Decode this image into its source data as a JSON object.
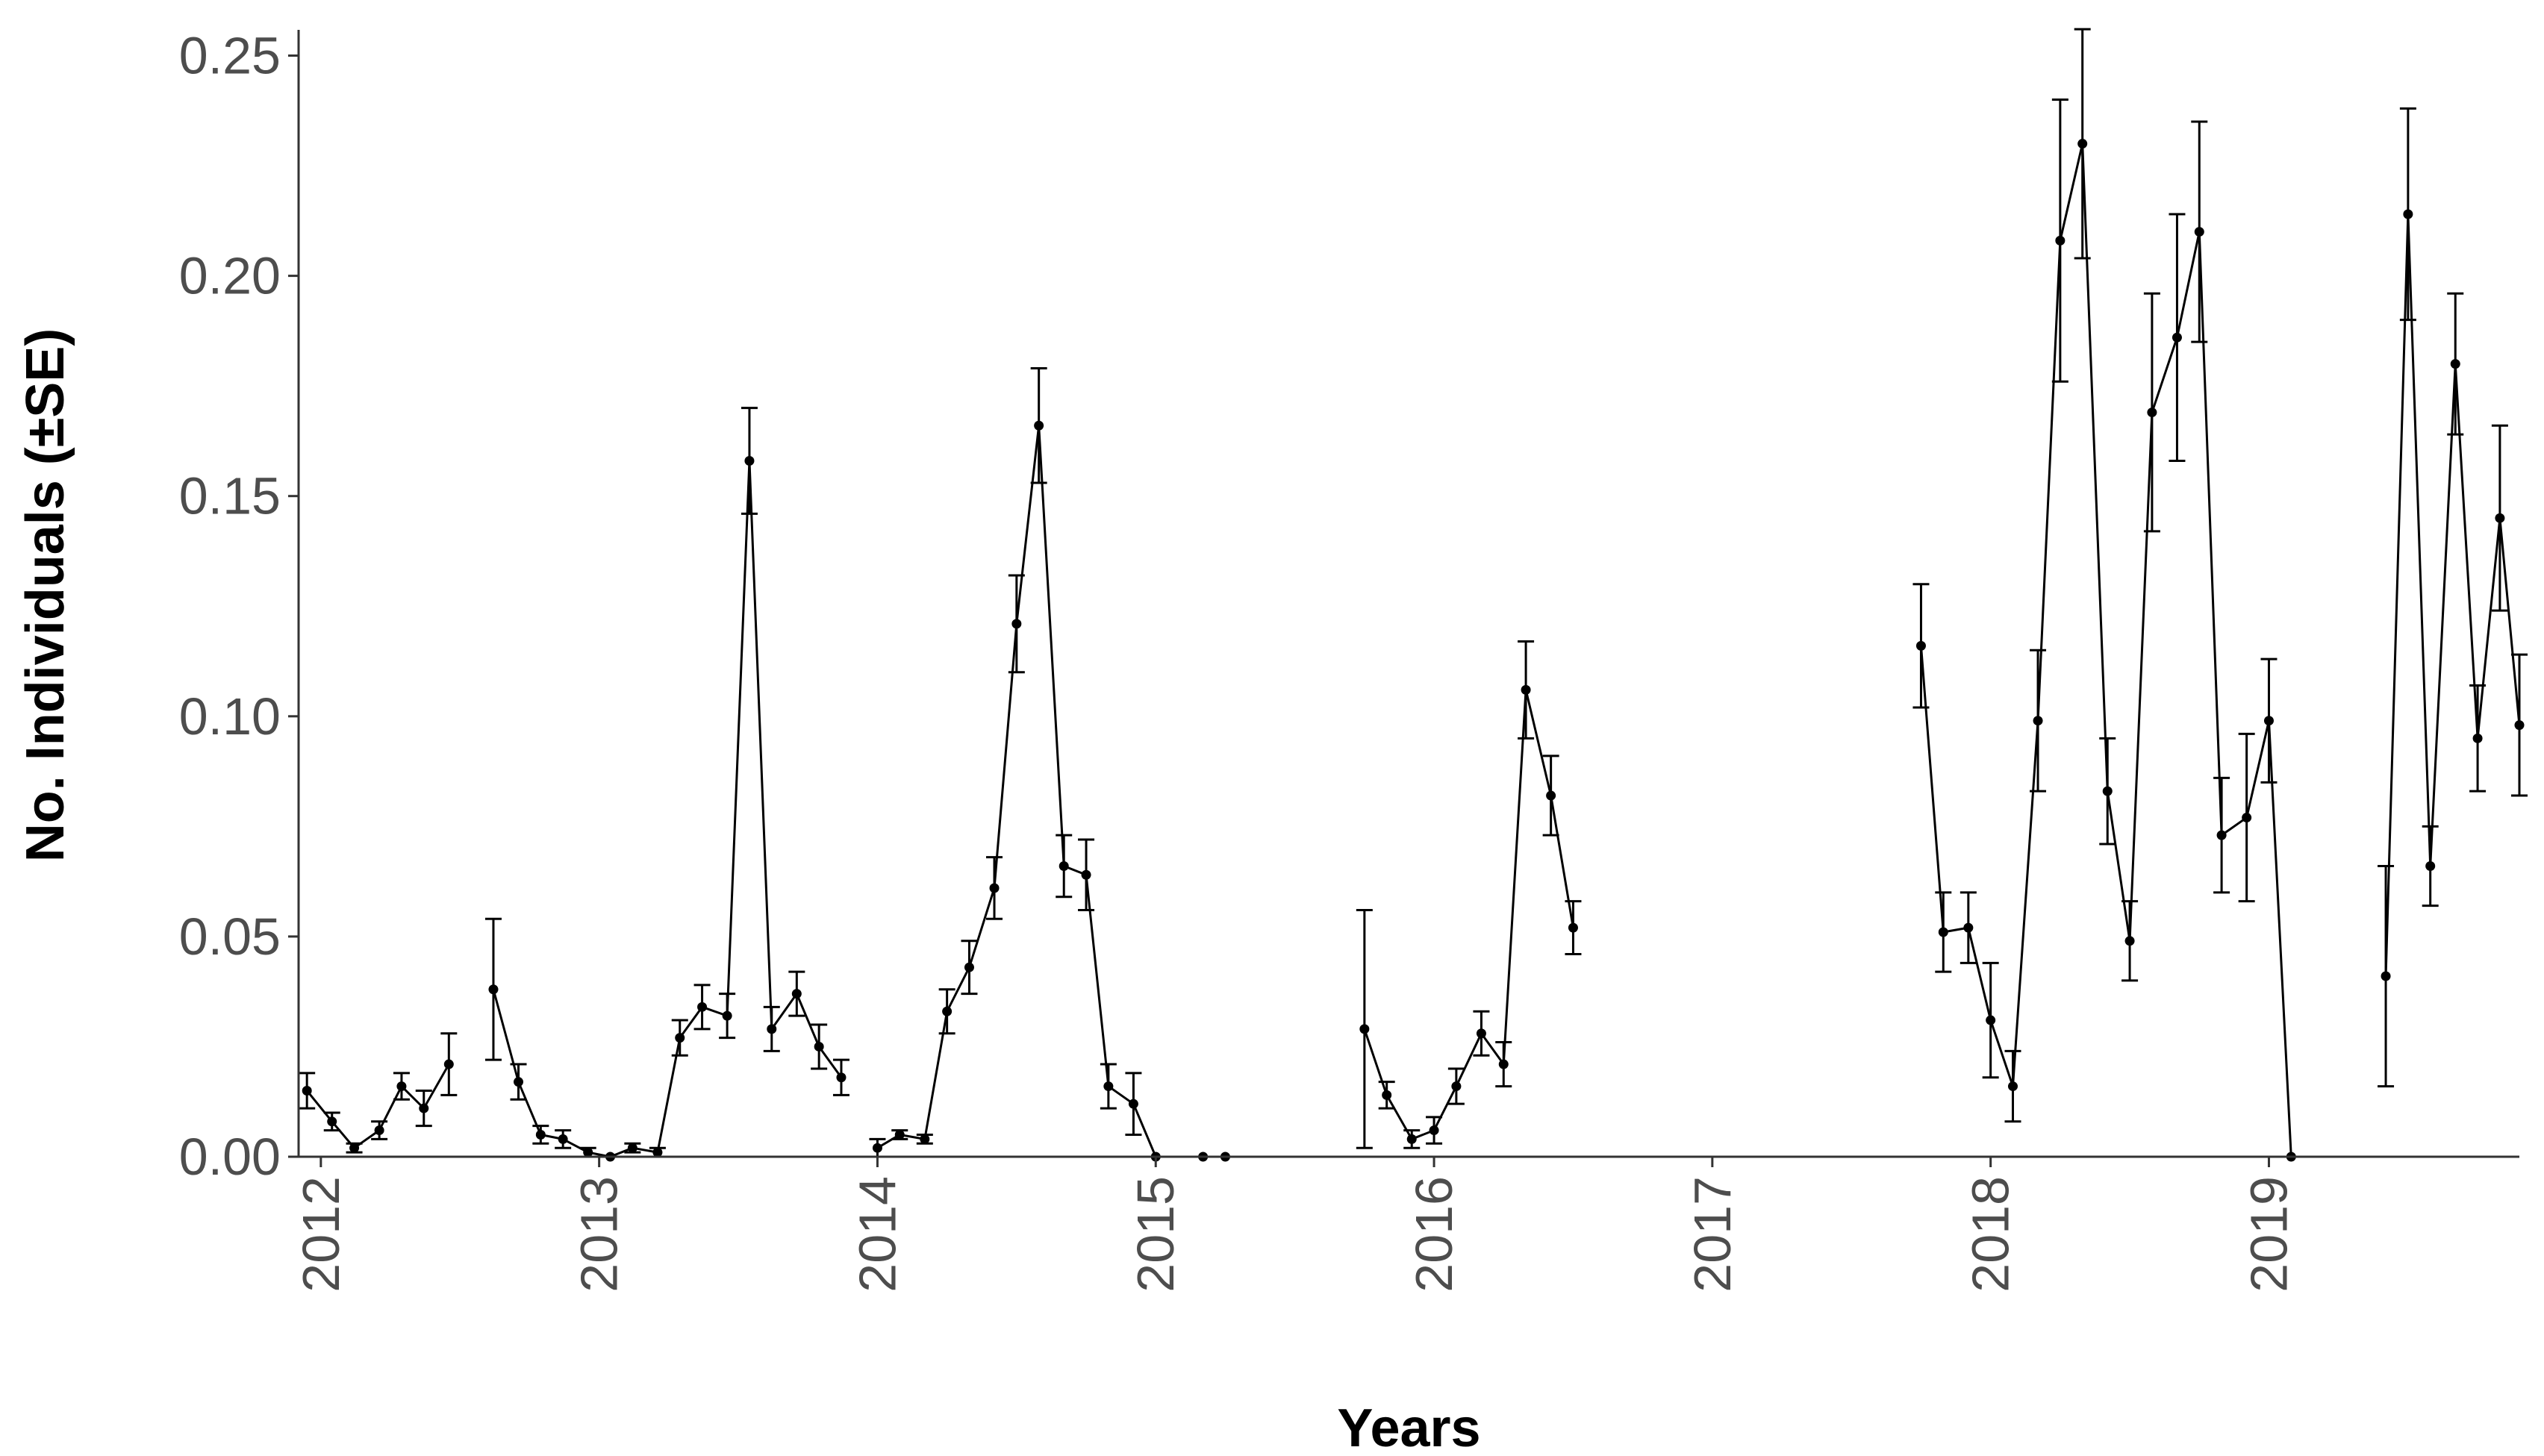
{
  "chart_data": {
    "type": "line",
    "xlabel": "Years",
    "ylabel": "No. Individuals (±SE)",
    "xlim": [
      2011.92,
      2019.9
    ],
    "ylim": [
      0,
      0.255
    ],
    "x_ticks": [
      {
        "value": 2012,
        "label": "2012"
      },
      {
        "value": 2013,
        "label": "2013"
      },
      {
        "value": 2014,
        "label": "2014"
      },
      {
        "value": 2015,
        "label": "2015"
      },
      {
        "value": 2016,
        "label": "2016"
      },
      {
        "value": 2017,
        "label": "2017"
      },
      {
        "value": 2018,
        "label": "2018"
      },
      {
        "value": 2019,
        "label": "2019"
      }
    ],
    "y_ticks": [
      {
        "value": 0.0,
        "label": "0.00"
      },
      {
        "value": 0.05,
        "label": "0.05"
      },
      {
        "value": 0.1,
        "label": "0.10"
      },
      {
        "value": 0.15,
        "label": "0.15"
      },
      {
        "value": 0.2,
        "label": "0.20"
      },
      {
        "value": 0.25,
        "label": "0.25"
      }
    ],
    "grid": false,
    "colors": {
      "line": "#000000",
      "axis": "#333333",
      "tick_label": "#4d4d4d"
    },
    "series": [
      {
        "segments": [
          [
            {
              "x": 2011.95,
              "y": 0.015,
              "se": 0.004
            },
            {
              "x": 2012.04,
              "y": 0.008,
              "se": 0.002
            },
            {
              "x": 2012.12,
              "y": 0.002,
              "se": 0.001
            },
            {
              "x": 2012.21,
              "y": 0.006,
              "se": 0.002
            },
            {
              "x": 2012.29,
              "y": 0.016,
              "se": 0.003
            },
            {
              "x": 2012.37,
              "y": 0.011,
              "se": 0.004
            },
            {
              "x": 2012.46,
              "y": 0.021,
              "se": 0.007
            }
          ],
          [
            {
              "x": 2012.62,
              "y": 0.038,
              "se": 0.016
            },
            {
              "x": 2012.71,
              "y": 0.017,
              "se": 0.004
            },
            {
              "x": 2012.79,
              "y": 0.005,
              "se": 0.002
            },
            {
              "x": 2012.87,
              "y": 0.004,
              "se": 0.002
            },
            {
              "x": 2012.96,
              "y": 0.001,
              "se": 0.001
            },
            {
              "x": 2013.04,
              "y": 0.0,
              "se": 0.0
            },
            {
              "x": 2013.12,
              "y": 0.002,
              "se": 0.001
            },
            {
              "x": 2013.21,
              "y": 0.001,
              "se": 0.001
            },
            {
              "x": 2013.29,
              "y": 0.027,
              "se": 0.004
            },
            {
              "x": 2013.37,
              "y": 0.034,
              "se": 0.005
            },
            {
              "x": 2013.46,
              "y": 0.032,
              "se": 0.005
            },
            {
              "x": 2013.54,
              "y": 0.158,
              "se": 0.012
            },
            {
              "x": 2013.62,
              "y": 0.029,
              "se": 0.005
            },
            {
              "x": 2013.71,
              "y": 0.037,
              "se": 0.005
            },
            {
              "x": 2013.79,
              "y": 0.025,
              "se": 0.005
            },
            {
              "x": 2013.87,
              "y": 0.018,
              "se": 0.004
            }
          ],
          [
            {
              "x": 2014.0,
              "y": 0.002,
              "se": 0.002
            },
            {
              "x": 2014.08,
              "y": 0.005,
              "se": 0.001
            },
            {
              "x": 2014.17,
              "y": 0.004,
              "se": 0.001
            },
            {
              "x": 2014.25,
              "y": 0.033,
              "se": 0.005
            },
            {
              "x": 2014.33,
              "y": 0.043,
              "se": 0.006
            },
            {
              "x": 2014.42,
              "y": 0.061,
              "se": 0.007
            },
            {
              "x": 2014.5,
              "y": 0.121,
              "se": 0.011
            },
            {
              "x": 2014.58,
              "y": 0.166,
              "se": 0.013
            },
            {
              "x": 2014.67,
              "y": 0.066,
              "se": 0.007
            },
            {
              "x": 2014.75,
              "y": 0.064,
              "se": 0.008
            },
            {
              "x": 2014.83,
              "y": 0.016,
              "se": 0.005
            },
            {
              "x": 2014.92,
              "y": 0.012,
              "se": 0.007
            },
            {
              "x": 2015.0,
              "y": 0.0,
              "se": 0.0
            }
          ],
          [
            {
              "x": 2015.17,
              "y": 0.0,
              "se": 0.0
            },
            {
              "x": 2015.25,
              "y": 0.0,
              "se": 0.0
            }
          ],
          [
            {
              "x": 2015.75,
              "y": 0.029,
              "se": 0.027
            },
            {
              "x": 2015.83,
              "y": 0.014,
              "se": 0.003
            },
            {
              "x": 2015.92,
              "y": 0.004,
              "se": 0.002
            },
            {
              "x": 2016.0,
              "y": 0.006,
              "se": 0.003
            },
            {
              "x": 2016.08,
              "y": 0.016,
              "se": 0.004
            },
            {
              "x": 2016.17,
              "y": 0.028,
              "se": 0.005
            },
            {
              "x": 2016.25,
              "y": 0.021,
              "se": 0.005
            },
            {
              "x": 2016.33,
              "y": 0.106,
              "se": 0.011
            },
            {
              "x": 2016.42,
              "y": 0.082,
              "se": 0.009
            },
            {
              "x": 2016.5,
              "y": 0.052,
              "se": 0.006
            }
          ],
          [
            {
              "x": 2017.75,
              "y": 0.116,
              "se": 0.014
            },
            {
              "x": 2017.83,
              "y": 0.051,
              "se": 0.009
            },
            {
              "x": 2017.92,
              "y": 0.052,
              "se": 0.008
            },
            {
              "x": 2018.0,
              "y": 0.031,
              "se": 0.013
            },
            {
              "x": 2018.08,
              "y": 0.016,
              "se": 0.008
            },
            {
              "x": 2018.17,
              "y": 0.099,
              "se": 0.016
            },
            {
              "x": 2018.25,
              "y": 0.208,
              "se": 0.032
            },
            {
              "x": 2018.33,
              "y": 0.23,
              "se": 0.026
            },
            {
              "x": 2018.42,
              "y": 0.083,
              "se": 0.012
            },
            {
              "x": 2018.5,
              "y": 0.049,
              "se": 0.009
            },
            {
              "x": 2018.58,
              "y": 0.169,
              "se": 0.027
            },
            {
              "x": 2018.67,
              "y": 0.186,
              "se": 0.028
            },
            {
              "x": 2018.75,
              "y": 0.21,
              "se": 0.025
            },
            {
              "x": 2018.83,
              "y": 0.073,
              "se": 0.013
            },
            {
              "x": 2018.92,
              "y": 0.077,
              "se": 0.019
            },
            {
              "x": 2019.0,
              "y": 0.099,
              "se": 0.014
            },
            {
              "x": 2019.08,
              "y": 0.0,
              "se": 0.0
            }
          ],
          [
            {
              "x": 2019.42,
              "y": 0.041,
              "se": 0.025
            },
            {
              "x": 2019.5,
              "y": 0.214,
              "se": 0.024
            },
            {
              "x": 2019.58,
              "y": 0.066,
              "se": 0.009
            },
            {
              "x": 2019.67,
              "y": 0.18,
              "se": 0.016
            },
            {
              "x": 2019.75,
              "y": 0.095,
              "se": 0.012
            },
            {
              "x": 2019.83,
              "y": 0.145,
              "se": 0.021
            },
            {
              "x": 2019.9,
              "y": 0.098,
              "se": 0.016
            }
          ]
        ]
      }
    ]
  }
}
